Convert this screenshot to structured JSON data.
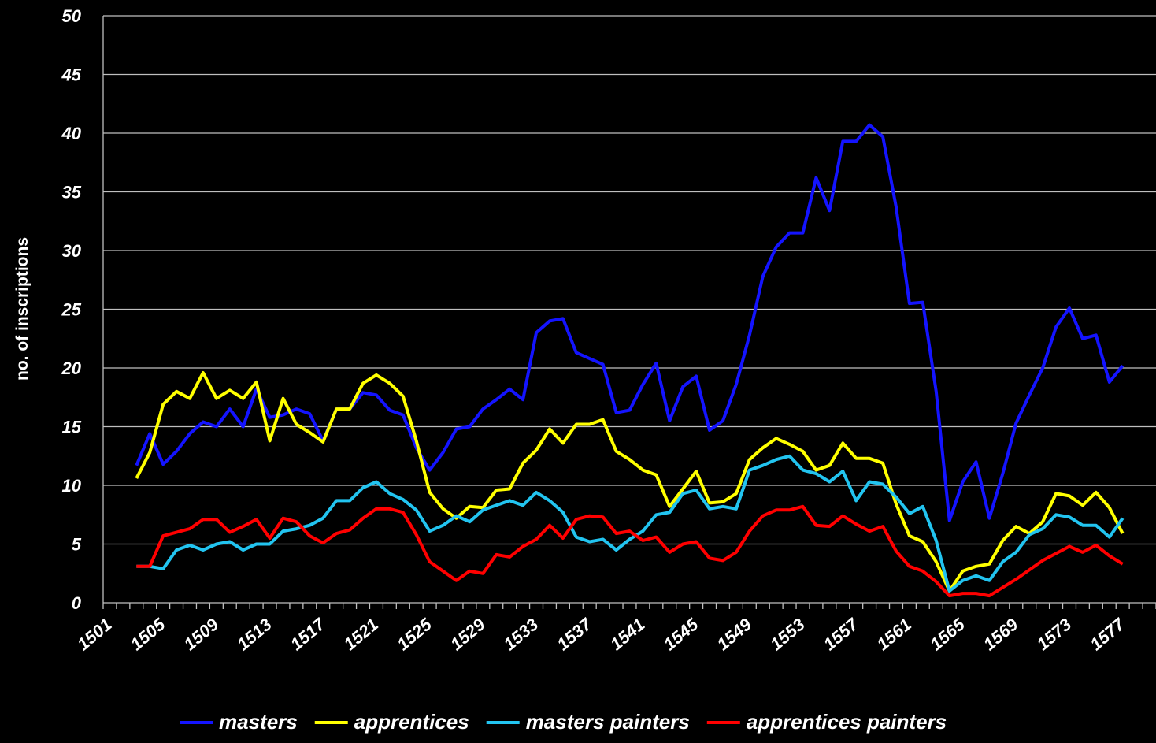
{
  "chart_data": {
    "type": "line",
    "y_label": "no. of inscriptions",
    "categories": [
      "1501",
      null,
      null,
      null,
      "1505",
      null,
      null,
      null,
      "1509",
      null,
      null,
      null,
      "1513",
      null,
      null,
      null,
      "1517",
      null,
      null,
      null,
      "1521",
      null,
      null,
      null,
      "1525",
      null,
      null,
      null,
      "1529",
      null,
      null,
      null,
      "1533",
      null,
      null,
      null,
      "1537",
      null,
      null,
      null,
      "1541",
      null,
      null,
      null,
      "1545",
      null,
      null,
      null,
      "1549",
      null,
      null,
      null,
      "1553",
      null,
      null,
      null,
      "1557",
      null,
      null,
      null,
      "1561",
      null,
      null,
      null,
      "1565",
      null,
      null,
      null,
      "1569",
      null,
      null,
      null,
      "1573",
      null,
      null,
      null,
      "1577",
      null,
      null
    ],
    "ylim": [
      0,
      50
    ],
    "yticks": [
      0,
      5,
      10,
      15,
      20,
      25,
      30,
      35,
      40,
      45,
      50
    ],
    "grid": true,
    "legend": "bottom",
    "series": [
      {
        "name": "masters",
        "color": "#1414ff",
        "values": [
          null,
          null,
          11.7,
          14.4,
          11.8,
          12.9,
          14.4,
          15.4,
          15.0,
          16.5,
          15.0,
          18.2,
          15.8,
          16.0,
          16.5,
          16.1,
          13.8,
          16.5,
          16.5,
          17.9,
          17.7,
          16.4,
          16.0,
          13.2,
          11.3,
          12.8,
          14.8,
          15.0,
          16.5,
          17.3,
          18.2,
          17.3,
          23.0,
          24.0,
          24.2,
          21.3,
          20.8,
          20.3,
          16.2,
          16.4,
          18.6,
          20.4,
          15.5,
          18.4,
          19.3,
          14.7,
          15.5,
          18.6,
          22.8,
          27.8,
          30.3,
          31.5,
          31.5,
          36.2,
          33.4,
          39.3,
          39.3,
          40.7,
          39.7,
          33.7,
          25.5,
          25.6,
          18.0,
          7.0,
          10.3,
          12.0,
          7.2,
          11.0,
          15.3,
          17.7,
          20.0,
          23.5,
          25.1,
          22.5,
          22.8,
          18.8,
          20.2,
          null,
          null
        ]
      },
      {
        "name": "apprentices",
        "color": "#ffff00",
        "values": [
          null,
          null,
          10.6,
          12.8,
          16.9,
          18.0,
          17.4,
          19.6,
          17.4,
          18.1,
          17.4,
          18.8,
          13.8,
          17.4,
          15.2,
          14.5,
          13.7,
          16.5,
          16.5,
          18.7,
          19.4,
          18.7,
          17.6,
          13.8,
          9.4,
          8.0,
          7.2,
          8.2,
          8.1,
          9.6,
          9.7,
          11.9,
          13.0,
          14.8,
          13.6,
          15.2,
          15.2,
          15.6,
          12.9,
          12.2,
          11.3,
          10.9,
          8.2,
          9.7,
          11.2,
          8.5,
          8.6,
          9.3,
          12.2,
          13.2,
          14.0,
          13.5,
          12.9,
          11.3,
          11.7,
          13.6,
          12.3,
          12.3,
          11.9,
          8.4,
          5.7,
          5.2,
          3.5,
          1.0,
          2.7,
          3.1,
          3.3,
          5.3,
          6.5,
          5.9,
          6.9,
          9.3,
          9.1,
          8.3,
          9.4,
          8.1,
          5.9,
          null,
          null
        ]
      },
      {
        "name": "masters painters",
        "color": "#22c4f0",
        "values": [
          null,
          null,
          3.1,
          3.1,
          2.9,
          4.5,
          4.9,
          4.5,
          5.0,
          5.2,
          4.5,
          5.0,
          5.0,
          6.1,
          6.3,
          6.6,
          7.2,
          8.7,
          8.7,
          9.8,
          10.3,
          9.3,
          8.8,
          7.9,
          6.1,
          6.6,
          7.4,
          6.9,
          7.9,
          8.3,
          8.7,
          8.3,
          9.4,
          8.7,
          7.7,
          5.6,
          5.2,
          5.4,
          4.5,
          5.4,
          6.1,
          7.5,
          7.7,
          9.3,
          9.6,
          8.0,
          8.2,
          8.0,
          11.3,
          11.7,
          12.2,
          12.5,
          11.3,
          11.0,
          10.3,
          11.2,
          8.7,
          10.3,
          10.1,
          9.0,
          7.6,
          8.2,
          5.3,
          1.0,
          1.9,
          2.3,
          1.9,
          3.5,
          4.3,
          5.8,
          6.3,
          7.5,
          7.3,
          6.6,
          6.6,
          5.6,
          7.2,
          null,
          null
        ]
      },
      {
        "name": "apprentices painters",
        "color": "#ff0000",
        "values": [
          null,
          null,
          3.1,
          3.1,
          5.7,
          6.0,
          6.3,
          7.1,
          7.1,
          6.0,
          6.5,
          7.1,
          5.5,
          7.2,
          6.9,
          5.7,
          5.1,
          5.9,
          6.2,
          7.2,
          8.0,
          8.0,
          7.7,
          5.8,
          3.5,
          2.7,
          1.9,
          2.7,
          2.5,
          4.1,
          3.9,
          4.8,
          5.4,
          6.6,
          5.5,
          7.1,
          7.4,
          7.3,
          5.9,
          6.1,
          5.3,
          5.6,
          4.3,
          5.0,
          5.2,
          3.8,
          3.6,
          4.3,
          6.1,
          7.4,
          7.9,
          7.9,
          8.2,
          6.6,
          6.5,
          7.4,
          6.7,
          6.1,
          6.5,
          4.4,
          3.1,
          2.7,
          1.8,
          0.6,
          0.8,
          0.8,
          0.6,
          1.3,
          2.0,
          2.8,
          3.6,
          4.2,
          4.8,
          4.3,
          4.9,
          4.0,
          3.3,
          null,
          null
        ]
      }
    ]
  }
}
